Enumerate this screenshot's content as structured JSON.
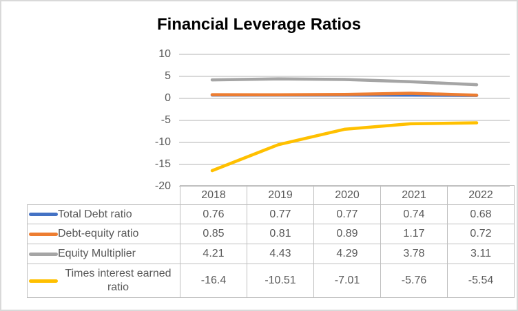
{
  "page": {
    "background": "#FFFFFF",
    "outer_border_color": "#D9D9D9"
  },
  "chart": {
    "text_color": "#595959",
    "gridline_color": "#D9D9D9",
    "table_border_color": "#BFBFBF",
    "title_color": "#000000"
  },
  "chart_data": {
    "type": "line",
    "title": "Financial Leverage Ratios",
    "categories": [
      "2018",
      "2019",
      "2020",
      "2021",
      "2022"
    ],
    "series": [
      {
        "name": "Total Debt ratio",
        "color": "#4472C4",
        "values": [
          0.76,
          0.77,
          0.77,
          0.74,
          0.68
        ]
      },
      {
        "name": "Debt-equity ratio",
        "color": "#ED7D31",
        "values": [
          0.85,
          0.81,
          0.89,
          1.17,
          0.72
        ]
      },
      {
        "name": "Equity Multiplier",
        "color": "#A5A5A5",
        "values": [
          4.21,
          4.43,
          4.29,
          3.78,
          3.11
        ]
      },
      {
        "name": "Times interest earned ratio",
        "color": "#FFC000",
        "values": [
          -16.4,
          -10.51,
          -7.01,
          -5.76,
          -5.54
        ]
      }
    ],
    "xlabel": "",
    "ylabel": "",
    "ylim": [
      -20,
      10
    ],
    "yticks": [
      10,
      5,
      0,
      -5,
      -10,
      -15,
      -20
    ],
    "grid": true,
    "legend_position": "data-table-left-column",
    "data_table_shown": true
  }
}
